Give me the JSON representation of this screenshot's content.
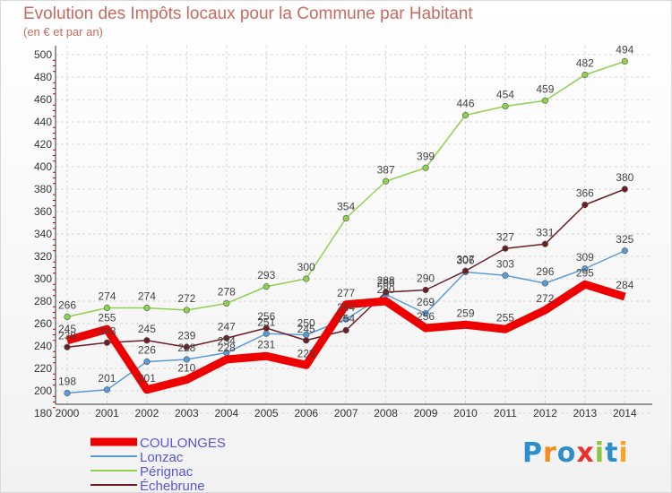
{
  "chart_data": {
    "type": "line",
    "title": "Evolution des Impôts locaux pour la Commune par Habitant",
    "subtitle": "(en € et par an)",
    "ylim": [
      180,
      500
    ],
    "yticks": [
      180,
      200,
      220,
      240,
      260,
      280,
      300,
      320,
      340,
      360,
      380,
      400,
      420,
      440,
      460,
      480,
      500
    ],
    "categories": [
      "2000",
      "2001",
      "2002",
      "2003",
      "2004",
      "2005",
      "2006",
      "2007",
      "2008",
      "2009",
      "2010",
      "2011",
      "2012",
      "2013",
      "2014"
    ],
    "grid": true,
    "legend_position": "bottom-left",
    "series": [
      {
        "name": "Lonzac",
        "color": "#5b9bd5",
        "values": [
          198,
          201,
          226,
          228,
          234,
          251,
          250,
          264,
          286,
          269,
          306,
          303,
          296,
          309,
          325
        ]
      },
      {
        "name": "Pérignac",
        "color": "#8fd14f",
        "values": [
          266,
          274,
          274,
          272,
          278,
          293,
          300,
          354,
          387,
          399,
          446,
          454,
          459,
          482,
          494
        ]
      },
      {
        "name": "Échebrune",
        "color": "#6b1f24",
        "values": [
          239,
          243,
          245,
          239,
          247,
          256,
          245,
          254,
          288,
          290,
          307,
          327,
          331,
          366,
          380
        ]
      },
      {
        "name": "COULONGES",
        "color": "#ee0000",
        "values": [
          245,
          255,
          201,
          210,
          228,
          231,
          223,
          277,
          280,
          256,
          259,
          255,
          272,
          295,
          284
        ]
      }
    ],
    "legend_order": [
      "COULONGES",
      "Lonzac",
      "Pérignac",
      "Échebrune"
    ]
  },
  "logo": {
    "text": "Proxiti",
    "letters": [
      "P",
      "r",
      "o",
      "x",
      "i",
      "t",
      "i"
    ],
    "colors": [
      "#2e8ec9",
      "#f28c1c",
      "#2e8ec9",
      "#e8322e",
      "#8cc63f",
      "#2e8ec9",
      "#f5a623"
    ]
  }
}
